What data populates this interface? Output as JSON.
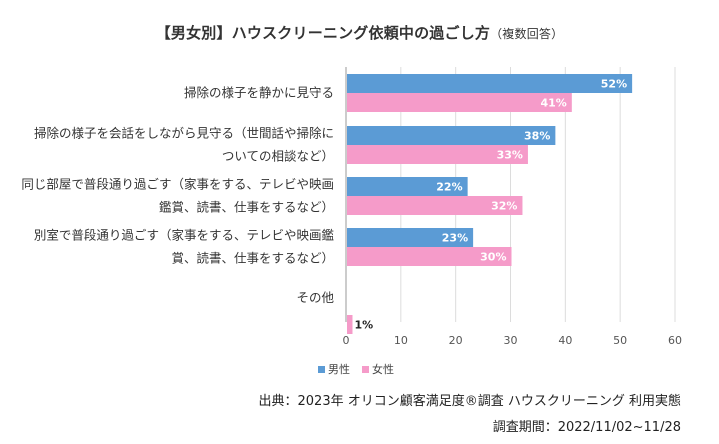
{
  "chart_data": {
    "type": "bar",
    "orientation": "horizontal",
    "title": "【男女別】ハウスクリーニング依頼中の過ごし方",
    "title_note": "（複数回答）",
    "categories": [
      [
        "掃除の様子を静かに見守る"
      ],
      [
        "掃除の様子を会話をしながら見守る（世間話や掃除に",
        "ついての相談など）"
      ],
      [
        "同じ部屋で普段通り過ごす（家事をする、テレビや映画",
        "鑑賞、読書、仕事をするなど）"
      ],
      [
        "別室で普段通り過ごす（家事をする、テレビや映画鑑",
        "賞、読書、仕事をするなど）"
      ],
      [
        "その他"
      ]
    ],
    "series": [
      {
        "name": "男性",
        "color": "#5b9bd5",
        "values": [
          52,
          38,
          22,
          23,
          null
        ],
        "labels": [
          "52%",
          "38%",
          "22%",
          "23%",
          ""
        ]
      },
      {
        "name": "女性",
        "color": "#f59bc9",
        "values": [
          41,
          33,
          32,
          30,
          1
        ],
        "labels": [
          "41%",
          "33%",
          "32%",
          "30%",
          "1%"
        ]
      }
    ],
    "xlim": [
      0,
      60
    ],
    "xticks": [
      0,
      10,
      20,
      30,
      40,
      50,
      60
    ],
    "grid": true,
    "legend": "bottom"
  },
  "source": "出典：2023年 オリコン顧客満足度®調査 ハウスクリーニング 利用実態",
  "period": "調査期間：2022/11/02~11/28"
}
